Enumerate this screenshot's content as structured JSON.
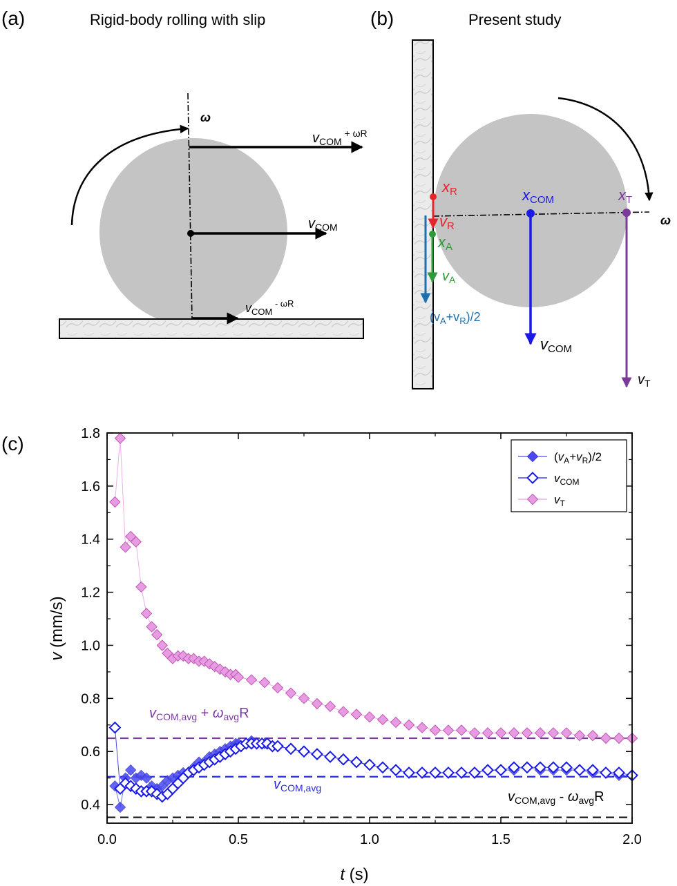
{
  "panel_a": {
    "label": "(a)",
    "title": "Rigid-body rolling with slip",
    "omega": "ω",
    "v_top_main": "v",
    "v_top_sub": "COM",
    "v_top_sup": " + ωR",
    "v_mid_main": "v",
    "v_mid_sub": "COM",
    "v_bot_main": "v",
    "v_bot_sub": "COM",
    "v_bot_sup": " - ωR"
  },
  "panel_b": {
    "label": "(b)",
    "title": "Present study",
    "omega": "ω",
    "xR_main": "x",
    "xR_sub": "R",
    "vR_main": "v",
    "vR_sub": "R",
    "xA_main": "x",
    "xA_sub": "A",
    "vA_main": "v",
    "vA_sub": "A",
    "avg_l": "(v",
    "avg_sA": "A",
    "avg_plus": "+v",
    "avg_sR": "R",
    "avg_r": ")/2",
    "xCOM_main": "x",
    "xCOM_sub": "COM",
    "vCOM_main": "v",
    "vCOM_sub": "COM",
    "xT_main": "x",
    "xT_sub": "T",
    "vT_main": "v",
    "vT_sub": "T",
    "colors": {
      "R": "#e8242b",
      "A": "#2e9a3a",
      "avg": "#1f6fae",
      "COM": "#1a1ae6",
      "T": "#7a3a9a"
    }
  },
  "panel_c": {
    "label": "(c)",
    "ylabel_var": "v",
    "ylabel_unit": " (mm/s)",
    "xlabel_var": "t",
    "xlabel_unit": " (s)",
    "ann_upper": {
      "v": "v",
      "sub1": "COM,avg",
      "plus": " + ",
      "w": "ω",
      "sub2": "avg",
      "R": "R"
    },
    "ann_mid": {
      "v": "v",
      "sub1": "COM,avg"
    },
    "ann_lower": {
      "v": "v",
      "sub1": "COM,avg",
      "minus": " - ",
      "w": "ω",
      "sub2": "avg",
      "R": "R"
    },
    "legend": [
      {
        "pre": "(",
        "v1": "v",
        "s1": "A",
        "mid": "+",
        "v2": "v",
        "s2": "R",
        "post": ")/2"
      },
      {
        "v": "v",
        "s": "COM"
      },
      {
        "v": "v",
        "s": "T"
      }
    ]
  },
  "chart_data": {
    "type": "scatter",
    "xlabel": "t (s)",
    "ylabel": "v (mm/s)",
    "xlim": [
      0.0,
      2.0
    ],
    "ylim": [
      0.33,
      1.8
    ],
    "xticks": [
      "0.0",
      "0.5",
      "1.0",
      "1.5",
      "2.0"
    ],
    "yticks": [
      "0.4",
      "0.6",
      "0.8",
      "1.0",
      "1.2",
      "1.4",
      "1.6",
      "1.8"
    ],
    "grid": false,
    "legend_position": "top-right",
    "reference_lines": [
      {
        "label": "vCOM,avg + ωavgR",
        "y": 0.65,
        "color": "#7a3aa0",
        "style": "dashed"
      },
      {
        "label": "vCOM,avg",
        "y": 0.505,
        "color": "#2a2ae0",
        "style": "dashed"
      },
      {
        "label": "vCOM,avg - ωavgR",
        "y": 0.352,
        "color": "#111111",
        "style": "dashed"
      }
    ],
    "series": [
      {
        "name": "(vA+vR)/2",
        "marker": "filled-diamond",
        "color": "#4a4af0",
        "x": [
          0.03,
          0.05,
          0.07,
          0.09,
          0.11,
          0.13,
          0.15,
          0.17,
          0.19,
          0.21,
          0.23,
          0.25,
          0.27,
          0.29,
          0.31,
          0.33,
          0.35,
          0.37,
          0.39,
          0.41,
          0.43,
          0.45,
          0.47,
          0.49,
          0.5,
          0.55,
          0.6,
          0.65,
          0.7,
          0.75,
          0.8,
          0.85,
          0.9,
          0.95,
          1.0,
          1.05,
          1.1,
          1.15,
          1.2,
          1.25,
          1.3,
          1.35,
          1.4,
          1.45,
          1.5,
          1.55,
          1.6,
          1.65,
          1.7,
          1.75,
          1.8,
          1.85,
          1.9,
          1.95,
          2.0
        ],
        "y": [
          0.47,
          0.39,
          0.5,
          0.53,
          0.5,
          0.51,
          0.5,
          0.47,
          0.46,
          0.47,
          0.49,
          0.5,
          0.51,
          0.52,
          0.52,
          0.54,
          0.56,
          0.56,
          0.58,
          0.59,
          0.6,
          0.61,
          0.62,
          0.63,
          0.63,
          0.64,
          0.63,
          0.62,
          0.61,
          0.6,
          0.59,
          0.58,
          0.57,
          0.56,
          0.55,
          0.54,
          0.53,
          0.52,
          0.52,
          0.52,
          0.52,
          0.52,
          0.52,
          0.53,
          0.53,
          0.53,
          0.54,
          0.53,
          0.53,
          0.53,
          0.53,
          0.52,
          0.52,
          0.51,
          0.51
        ]
      },
      {
        "name": "vCOM",
        "marker": "open-diamond",
        "color": "#1a1ae6",
        "x": [
          0.03,
          0.05,
          0.07,
          0.09,
          0.11,
          0.13,
          0.15,
          0.17,
          0.19,
          0.21,
          0.23,
          0.25,
          0.27,
          0.29,
          0.31,
          0.33,
          0.35,
          0.37,
          0.39,
          0.41,
          0.43,
          0.45,
          0.47,
          0.49,
          0.51,
          0.53,
          0.55,
          0.57,
          0.59,
          0.61,
          0.63,
          0.65,
          0.7,
          0.75,
          0.8,
          0.85,
          0.9,
          0.95,
          1.0,
          1.05,
          1.1,
          1.15,
          1.2,
          1.25,
          1.3,
          1.35,
          1.4,
          1.45,
          1.5,
          1.55,
          1.6,
          1.65,
          1.7,
          1.75,
          1.8,
          1.85,
          1.9,
          1.95,
          2.0
        ],
        "y": [
          0.69,
          0.46,
          0.48,
          0.47,
          0.46,
          0.45,
          0.45,
          0.45,
          0.44,
          0.43,
          0.44,
          0.46,
          0.48,
          0.5,
          0.52,
          0.53,
          0.54,
          0.55,
          0.56,
          0.57,
          0.58,
          0.59,
          0.6,
          0.61,
          0.62,
          0.63,
          0.63,
          0.63,
          0.63,
          0.63,
          0.62,
          0.62,
          0.61,
          0.6,
          0.59,
          0.58,
          0.57,
          0.56,
          0.55,
          0.54,
          0.53,
          0.52,
          0.52,
          0.52,
          0.52,
          0.52,
          0.52,
          0.53,
          0.53,
          0.54,
          0.54,
          0.54,
          0.54,
          0.54,
          0.53,
          0.53,
          0.52,
          0.52,
          0.51
        ]
      },
      {
        "name": "vT",
        "marker": "filled-diamond",
        "color": "#e79be0",
        "x": [
          0.03,
          0.05,
          0.07,
          0.09,
          0.11,
          0.13,
          0.15,
          0.17,
          0.19,
          0.21,
          0.23,
          0.25,
          0.27,
          0.29,
          0.31,
          0.33,
          0.35,
          0.37,
          0.39,
          0.41,
          0.43,
          0.45,
          0.47,
          0.49,
          0.5,
          0.55,
          0.6,
          0.65,
          0.7,
          0.75,
          0.8,
          0.85,
          0.9,
          0.95,
          1.0,
          1.05,
          1.1,
          1.15,
          1.2,
          1.25,
          1.3,
          1.35,
          1.4,
          1.45,
          1.5,
          1.55,
          1.6,
          1.65,
          1.7,
          1.75,
          1.8,
          1.85,
          1.9,
          1.95,
          2.0
        ],
        "y": [
          1.54,
          1.78,
          1.37,
          1.41,
          1.39,
          1.22,
          1.12,
          1.07,
          1.04,
          1.0,
          0.97,
          0.95,
          0.96,
          0.96,
          0.95,
          0.95,
          0.94,
          0.94,
          0.93,
          0.92,
          0.91,
          0.9,
          0.89,
          0.89,
          0.88,
          0.87,
          0.86,
          0.84,
          0.82,
          0.8,
          0.78,
          0.77,
          0.75,
          0.74,
          0.73,
          0.72,
          0.71,
          0.7,
          0.69,
          0.68,
          0.68,
          0.68,
          0.67,
          0.67,
          0.67,
          0.67,
          0.67,
          0.67,
          0.67,
          0.67,
          0.66,
          0.66,
          0.65,
          0.65,
          0.65
        ]
      }
    ]
  }
}
